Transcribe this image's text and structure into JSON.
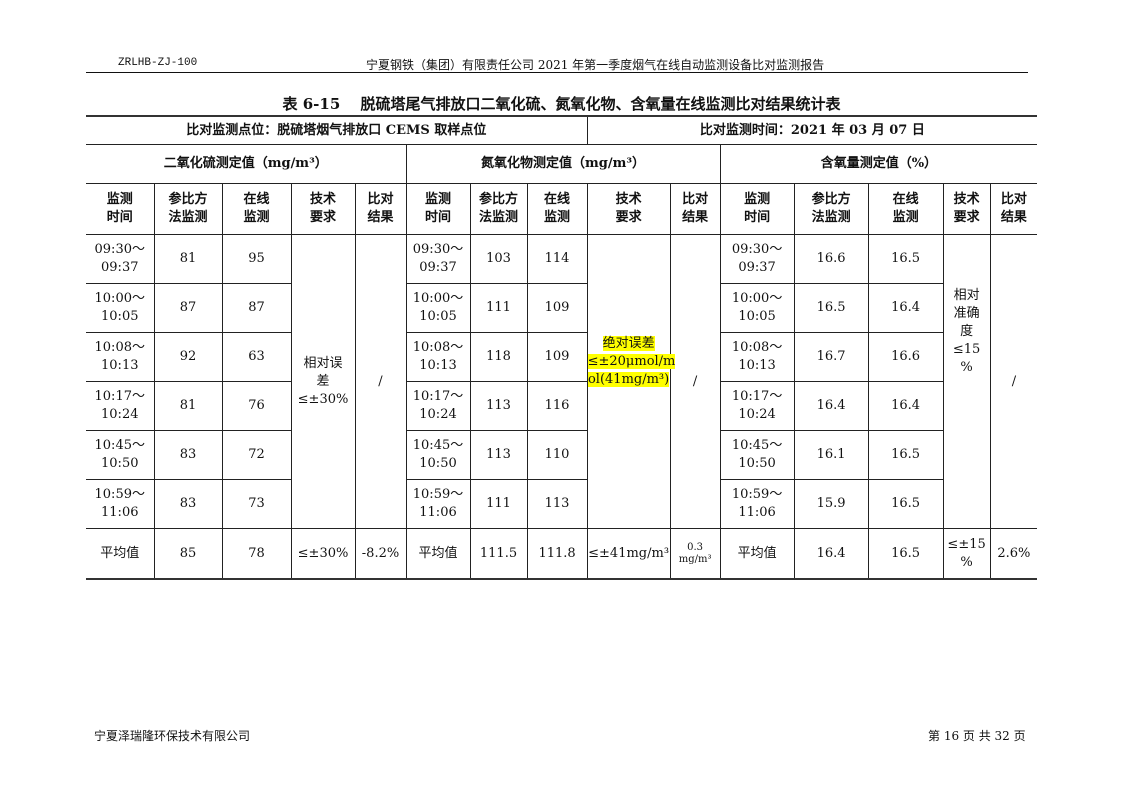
{
  "header": {
    "code": "ZRLHB-ZJ-100",
    "title": "宁夏钢铁（集团）有限责任公司 2021 年第一季度烟气在线自动监测设备比对监测报告"
  },
  "table_title": "表 6-15　 脱硫塔尾气排放口二氧化硫、氮氧化物、含氧量在线监测比对结果统计表",
  "location": "比对监测点位：脱硫塔烟气排放口 CEMS 取样点位",
  "date": "比对监测时间：2021 年 03 月 07 日",
  "groups": [
    "二氧化硫测定值（mg/m³）",
    "氮氧化物测定值（mg/m³）",
    "含氧量测定值（%）"
  ],
  "col_headers": [
    "监测\n时间",
    "参比方\n法监测",
    "在线\n监测",
    "技术\n要求",
    "比对\n结果"
  ],
  "rows": [
    {
      "so2_time": "09:30～\n09:37",
      "so2_ref": "81",
      "so2_online": "95",
      "nox_time": "09:30～\n09:37",
      "nox_ref": "103",
      "nox_online": "114",
      "o2_time": "09:30～\n09:37",
      "o2_ref": "16.6",
      "o2_online": "16.5"
    },
    {
      "so2_time": "10:00～\n10:05",
      "so2_ref": "87",
      "so2_online": "87",
      "nox_time": "10:00～\n10:05",
      "nox_ref": "111",
      "nox_online": "109",
      "o2_time": "10:00～\n10:05",
      "o2_ref": "16.5",
      "o2_online": "16.4"
    },
    {
      "so2_time": "10:08～\n10:13",
      "so2_ref": "92",
      "so2_online": "63",
      "nox_time": "10:08～\n10:13",
      "nox_ref": "118",
      "nox_online": "109",
      "o2_time": "10:08～\n10:13",
      "o2_ref": "16.7",
      "o2_online": "16.6"
    },
    {
      "so2_time": "10:17～\n10:24",
      "so2_ref": "81",
      "so2_online": "76",
      "nox_time": "10:17～\n10:24",
      "nox_ref": "113",
      "nox_online": "116",
      "o2_time": "10:17～\n10:24",
      "o2_ref": "16.4",
      "o2_online": "16.4"
    },
    {
      "so2_time": "10:45～\n10:50",
      "so2_ref": "83",
      "so2_online": "72",
      "nox_time": "10:45～\n10:50",
      "nox_ref": "113",
      "nox_online": "110",
      "o2_time": "10:45～\n10:50",
      "o2_ref": "16.1",
      "o2_online": "16.5"
    },
    {
      "so2_time": "10:59～\n11:06",
      "so2_ref": "83",
      "so2_online": "73",
      "nox_time": "10:59～\n11:06",
      "nox_ref": "111",
      "nox_online": "113",
      "o2_time": "10:59～\n11:06",
      "o2_ref": "15.9",
      "o2_online": "16.5"
    }
  ],
  "merged": {
    "so2_req": "相对误\n差\n≤±30%",
    "so2_result": "/",
    "nox_req": "绝对误差\n≤±20μmol/m\nol(41mg/m³)",
    "nox_result": "/",
    "o2_req": "相对\n准确\n度\n≤15\n%",
    "o2_result": "/"
  },
  "average": {
    "label": "平均值",
    "so2_ref": "85",
    "so2_online": "78",
    "so2_req": "≤±30%",
    "so2_result": "-8.2%",
    "nox_ref": "111.5",
    "nox_online": "111.8",
    "nox_req": "≤±41mg/m³",
    "nox_result": "0.3\nmg/m³",
    "o2_ref": "16.4",
    "o2_online": "16.5",
    "o2_req": "≤±15\n%",
    "o2_result": "2.6%"
  },
  "highlight_color": "#ffff00",
  "footer": {
    "company": "宁夏泽瑞隆环保技术有限公司",
    "page": "第 16 页 共 32 页"
  }
}
